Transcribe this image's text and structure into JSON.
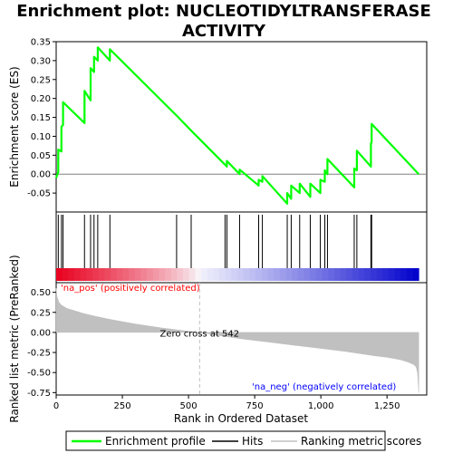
{
  "chart_data": {
    "type": "line",
    "title_lines": [
      "Enrichment plot: NUCLEOTIDYLTRANSFERASE",
      "ACTIVITY"
    ],
    "panels": {
      "enrichment": {
        "ylabel": "Enrichment score (ES)",
        "ylim": [
          -0.1,
          0.35
        ],
        "yticks": [
          -0.05,
          0.0,
          0.05,
          0.1,
          0.15,
          0.2,
          0.25,
          0.3,
          0.35
        ],
        "ytick_labels": [
          "-0.05",
          "0.00",
          "0.05",
          "0.10",
          "0.15",
          "0.20",
          "0.25",
          "0.30",
          "0.35"
        ],
        "series": [
          {
            "name": "Enrichment profile",
            "color": "#00ff00",
            "x": [
              0,
              8,
              8,
              20,
              20,
              26,
              26,
              107,
              107,
              130,
              130,
              143,
              143,
              157,
              157,
              203,
              203,
              455,
              455,
              510,
              510,
              638,
              638,
              645,
              645,
              693,
              693,
              765,
              765,
              779,
              779,
              873,
              873,
              888,
              888,
              920,
              920,
              960,
              960,
              998,
              998,
              1015,
              1015,
              1025,
              1025,
              1126,
              1126,
              1136,
              1136,
              1189,
              1189,
              1192,
              1192,
              1370
            ],
            "y": [
              -0.01,
              0.005,
              0.065,
              0.06,
              0.125,
              0.13,
              0.19,
              0.135,
              0.22,
              0.195,
              0.28,
              0.27,
              0.31,
              0.3,
              0.335,
              0.3,
              0.33,
              0.155,
              0.155,
              0.115,
              0.115,
              0.025,
              0.025,
              0.02,
              0.035,
              0.0,
              0.012,
              -0.03,
              -0.015,
              -0.02,
              -0.005,
              -0.078,
              -0.05,
              -0.065,
              -0.03,
              -0.05,
              -0.025,
              -0.06,
              -0.025,
              -0.05,
              -0.015,
              -0.02,
              0.01,
              0.0,
              0.04,
              -0.035,
              0.015,
              0.01,
              0.062,
              0.02,
              0.08,
              0.085,
              0.133,
              0.0
            ]
          }
        ]
      },
      "hits": {
        "x": [
          8,
          20,
          26,
          107,
          130,
          143,
          157,
          203,
          455,
          510,
          638,
          645,
          693,
          765,
          779,
          873,
          888,
          920,
          960,
          998,
          1015,
          1025,
          1126,
          1136,
          1189,
          1192
        ]
      },
      "ranked_metric": {
        "xlabel": "Rank in Ordered Dataset",
        "ylabel": "Ranked list metric (PreRanked)",
        "xlim": [
          0,
          1400
        ],
        "xticks": [
          0,
          250,
          500,
          750,
          1000,
          1250
        ],
        "xtick_labels": [
          "0",
          "250",
          "500",
          "750",
          "1,000",
          "1,250"
        ],
        "ylim": [
          -0.78,
          0.62
        ],
        "yticks": [
          -0.75,
          -0.5,
          -0.25,
          0.0,
          0.25,
          0.5
        ],
        "ytick_labels": [
          "-0.75",
          "-0.50",
          "-0.25",
          "0.00",
          "0.25",
          "0.50"
        ],
        "zero_cross": 542,
        "zero_cross_label": "Zero cross at 542",
        "pos_label": "'na_pos' (positively correlated)",
        "neg_label": "'na_neg' (negatively correlated)",
        "profile": {
          "x": [
            0,
            3,
            10,
            20,
            40,
            70,
            100,
            150,
            200,
            250,
            300,
            350,
            400,
            450,
            500,
            542,
            600,
            700,
            800,
            900,
            1000,
            1100,
            1200,
            1250,
            1300,
            1330,
            1350,
            1360,
            1365,
            1370
          ],
          "y": [
            0.55,
            0.45,
            0.38,
            0.34,
            0.3,
            0.27,
            0.24,
            0.2,
            0.165,
            0.135,
            0.105,
            0.08,
            0.055,
            0.035,
            0.015,
            0.0,
            -0.03,
            -0.08,
            -0.12,
            -0.16,
            -0.2,
            -0.24,
            -0.29,
            -0.31,
            -0.34,
            -0.37,
            -0.4,
            -0.43,
            -0.5,
            -0.75
          ]
        }
      }
    },
    "legend": {
      "placement": "bottom",
      "entries": [
        {
          "label": "Enrichment profile",
          "color": "#00ff00"
        },
        {
          "label": "Hits",
          "color": "#000000"
        },
        {
          "label": "Ranking metric scores",
          "color": "#c0c0c0"
        }
      ]
    },
    "colors": {
      "profile": "#00ff00",
      "metric_fill": "#c0c0c0",
      "pos_text": "#ff0000",
      "neg_text": "#0000ff",
      "zero_line": "#c0c0c0",
      "heat_pos_strong": "#e8001e",
      "heat_neutral": "#f2f2f2",
      "heat_neg_strong": "#0000cc"
    }
  }
}
